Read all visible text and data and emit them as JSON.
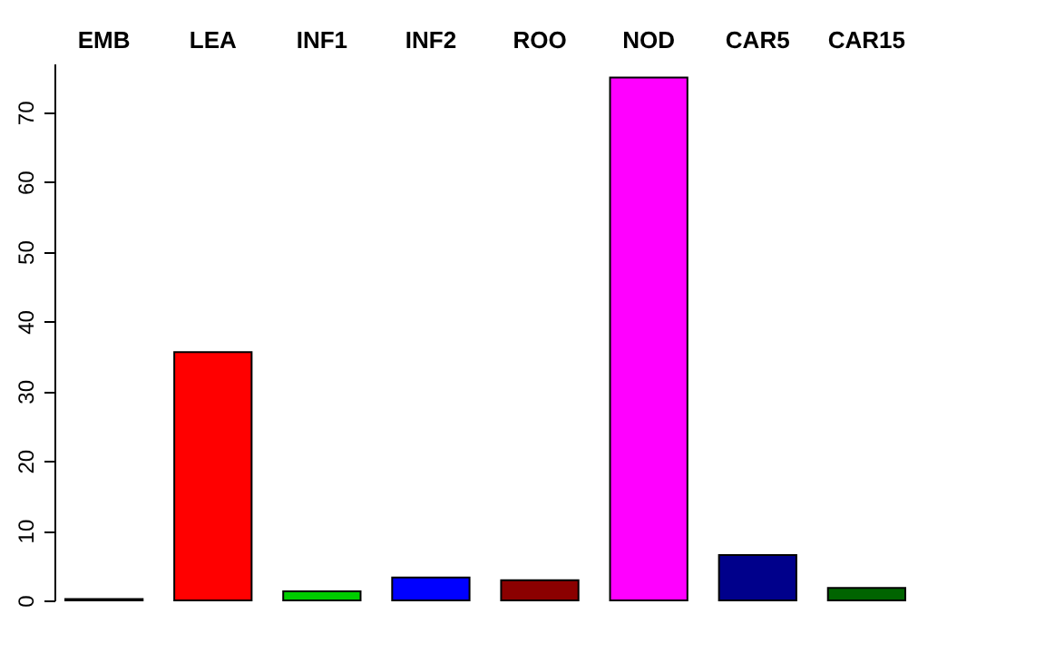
{
  "chart_data": {
    "type": "bar",
    "categories": [
      "EMB",
      "LEA",
      "INF1",
      "INF2",
      "ROO",
      "NOD",
      "CAR5",
      "CAR15"
    ],
    "values": [
      0.2,
      35.6,
      1.3,
      3.3,
      2.9,
      75,
      6.5,
      1.8
    ],
    "colors": [
      "#000000",
      "#ff0000",
      "#00cd00",
      "#0000ff",
      "#8b0000",
      "#ff00ff",
      "#00008b",
      "#006400"
    ],
    "ylim": [
      0,
      77
    ],
    "yticks": [
      0,
      10,
      20,
      30,
      40,
      50,
      60,
      70
    ],
    "grid": false
  }
}
